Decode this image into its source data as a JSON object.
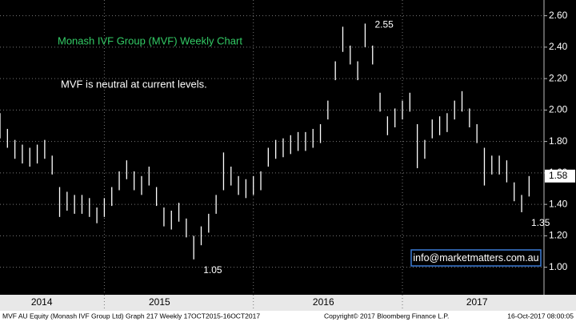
{
  "chart_data": {
    "type": "hilo",
    "title": "Monash IVF Group (MVF) Weekly Chart",
    "subtitle": "MVF is neutral at current levels.",
    "contact": "info@marketmatters.com.au",
    "footer": [
      "MVF AU Equity (Monash IVF Group Ltd) Graph 217  Weekly 17OCT2015-16OCT2017",
      "Copyright© 2017 Bloomberg Finance L.P.",
      "16-Oct-2017 08:00:05"
    ],
    "color": "#ffffff",
    "grid": true,
    "xlim": [
      2014.3,
      2017.95
    ],
    "ylim": [
      0.83,
      2.7
    ],
    "yticks": [
      {
        "value": 1.0,
        "label": "1.00"
      },
      {
        "value": 1.2,
        "label": "1.20"
      },
      {
        "value": 1.4,
        "label": "1.40"
      },
      {
        "value": 1.6,
        "label": "1.60"
      },
      {
        "value": 1.8,
        "label": "1.80"
      },
      {
        "value": 2.0,
        "label": "2.00"
      },
      {
        "value": 2.2,
        "label": "2.20"
      },
      {
        "value": 2.4,
        "label": "2.40"
      },
      {
        "value": 2.6,
        "label": "2.60"
      }
    ],
    "xticks": [
      {
        "value": 2014.58,
        "label": "2014"
      },
      {
        "value": 2015.37,
        "label": "2015"
      },
      {
        "value": 2016.47,
        "label": "2016"
      },
      {
        "value": 2017.5,
        "label": "2017"
      }
    ],
    "year_lines": [
      2015,
      2016,
      2017
    ],
    "last_price": {
      "value": 1.58,
      "label": "1.58"
    },
    "annotations": [
      {
        "text": "2.55",
        "index": 49
      },
      {
        "text": "1.05",
        "index": 26
      },
      {
        "text": "1.35",
        "index": 70
      }
    ],
    "x": [
      2014.3,
      2014.35,
      2014.4,
      2014.45,
      2014.5,
      2014.55,
      2014.6,
      2014.65,
      2014.7,
      2014.75,
      2014.8,
      2014.85,
      2014.9,
      2014.95,
      2015.0,
      2015.05,
      2015.1,
      2015.15,
      2015.2,
      2015.25,
      2015.3,
      2015.35,
      2015.4,
      2015.45,
      2015.5,
      2015.55,
      2015.6,
      2015.65,
      2015.7,
      2015.75,
      2015.8,
      2015.85,
      2015.9,
      2015.95,
      2016.0,
      2016.05,
      2016.1,
      2016.15,
      2016.2,
      2016.25,
      2016.3,
      2016.35,
      2016.4,
      2016.45,
      2016.5,
      2016.55,
      2016.6,
      2016.65,
      2016.7,
      2016.75,
      2016.8,
      2016.85,
      2016.9,
      2016.95,
      2017.0,
      2017.05,
      2017.1,
      2017.15,
      2017.2,
      2017.25,
      2017.3,
      2017.35,
      2017.4,
      2017.45,
      2017.5,
      2017.55,
      2017.6,
      2017.65,
      2017.7,
      2017.75,
      2017.8,
      2017.85
    ],
    "high": [
      1.98,
      1.88,
      1.81,
      1.78,
      1.76,
      1.78,
      1.81,
      1.71,
      1.51,
      1.48,
      1.46,
      1.46,
      1.44,
      1.38,
      1.44,
      1.51,
      1.61,
      1.68,
      1.61,
      1.58,
      1.64,
      1.51,
      1.38,
      1.36,
      1.41,
      1.31,
      1.2,
      1.26,
      1.34,
      1.46,
      1.73,
      1.64,
      1.58,
      1.56,
      1.58,
      1.61,
      1.76,
      1.81,
      1.82,
      1.84,
      1.86,
      1.86,
      1.88,
      1.91,
      2.06,
      2.31,
      2.53,
      2.41,
      2.31,
      2.55,
      2.41,
      2.11,
      1.96,
      2.01,
      2.06,
      2.11,
      1.91,
      1.81,
      1.94,
      1.96,
      1.98,
      2.06,
      2.12,
      2.01,
      1.91,
      1.76,
      1.71,
      1.71,
      1.68,
      1.54,
      1.46,
      1.58
    ],
    "low": [
      1.82,
      1.76,
      1.69,
      1.66,
      1.64,
      1.66,
      1.69,
      1.59,
      1.32,
      1.36,
      1.34,
      1.34,
      1.32,
      1.28,
      1.32,
      1.39,
      1.49,
      1.56,
      1.49,
      1.46,
      1.52,
      1.39,
      1.26,
      1.24,
      1.29,
      1.19,
      1.05,
      1.14,
      1.22,
      1.34,
      1.49,
      1.52,
      1.46,
      1.44,
      1.46,
      1.49,
      1.64,
      1.69,
      1.7,
      1.72,
      1.74,
      1.74,
      1.76,
      1.79,
      1.94,
      2.19,
      2.37,
      2.29,
      2.19,
      2.4,
      2.29,
      1.99,
      1.84,
      1.89,
      1.94,
      1.99,
      1.63,
      1.69,
      1.82,
      1.84,
      1.86,
      1.94,
      1.99,
      1.89,
      1.79,
      1.52,
      1.59,
      1.59,
      1.54,
      1.42,
      1.35,
      1.45
    ]
  }
}
